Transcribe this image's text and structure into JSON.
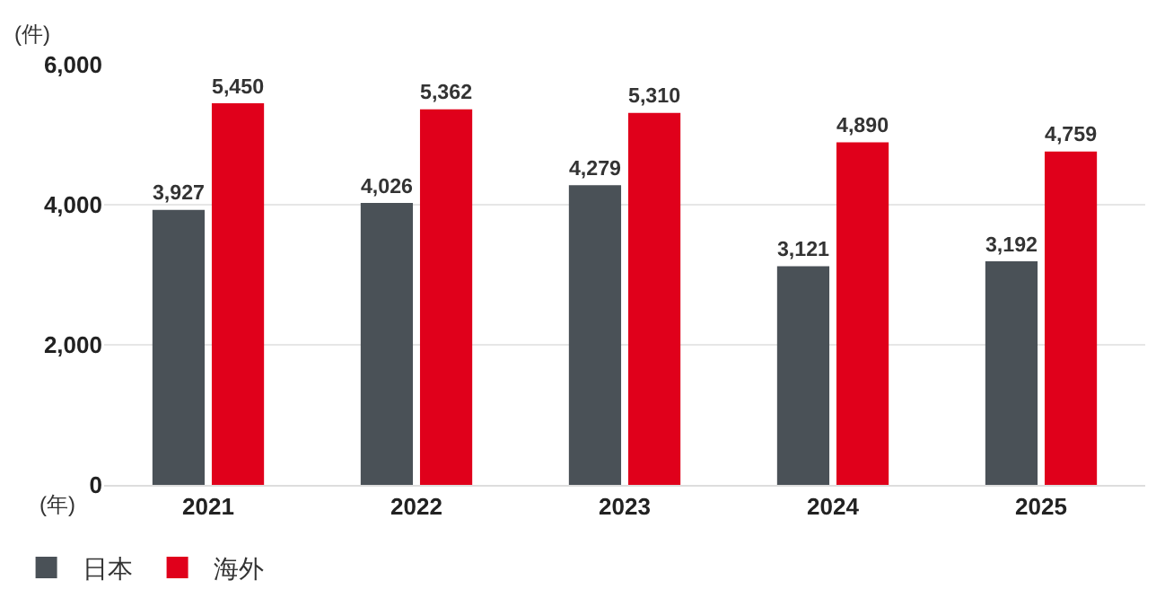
{
  "chart_data": {
    "type": "bar",
    "ylabel": "(件)",
    "xlabel": "(年)",
    "categories": [
      "2021",
      "2022",
      "2023",
      "2024",
      "2025"
    ],
    "series": [
      {
        "name": "日本",
        "color": "#4a5157",
        "values": [
          3927,
          4026,
          4279,
          3121,
          3192
        ],
        "value_labels": [
          "3,927",
          "4,026",
          "4,279",
          "3,121",
          "3,192"
        ]
      },
      {
        "name": "海外",
        "color": "#e0001b",
        "values": [
          5450,
          5362,
          5310,
          4890,
          4759
        ],
        "value_labels": [
          "5,450",
          "5,362",
          "5,310",
          "4,890",
          "4,759"
        ]
      }
    ],
    "ylim": [
      0,
      6000
    ],
    "yticks": [
      {
        "value": 0,
        "label": "0"
      },
      {
        "value": 2000,
        "label": "2,000"
      },
      {
        "value": 4000,
        "label": "4,000"
      },
      {
        "value": 6000,
        "label": "6,000"
      }
    ],
    "grid": "y",
    "legend": "bottom left"
  }
}
